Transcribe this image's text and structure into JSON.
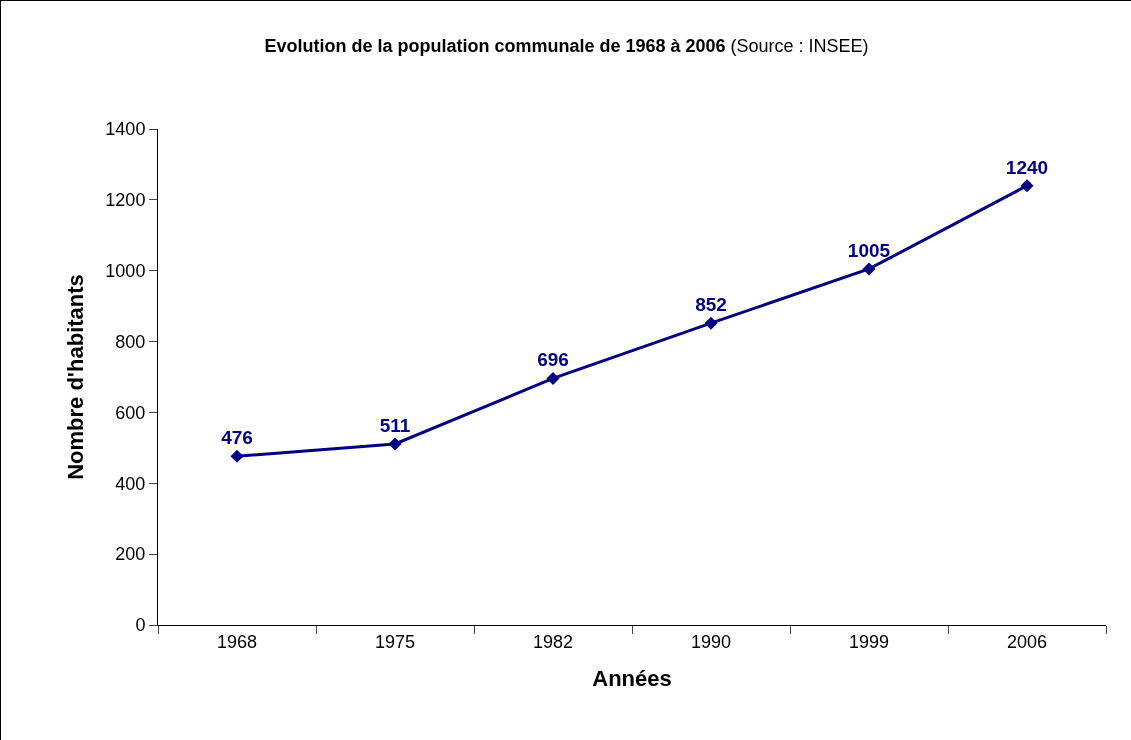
{
  "chart_data": {
    "type": "line",
    "title": "Evolution de la population communale de 1968 à 2006",
    "annotations": [
      "(Source : INSEE)"
    ],
    "xlabel": "Années",
    "ylabel": "Nombre d'habitants",
    "categories": [
      "1968",
      "1975",
      "1982",
      "1990",
      "1999",
      "2006"
    ],
    "series": [
      {
        "color": "#000080",
        "values": [
          476,
          511,
          696,
          852,
          1005,
          1240
        ]
      }
    ],
    "ylim": [
      0,
      1400
    ],
    "yticks": [
      0,
      200,
      400,
      600,
      800,
      1000,
      1200,
      1400
    ],
    "grid": false,
    "marker": "diamond",
    "line_style": "solid",
    "data_labels": true
  }
}
